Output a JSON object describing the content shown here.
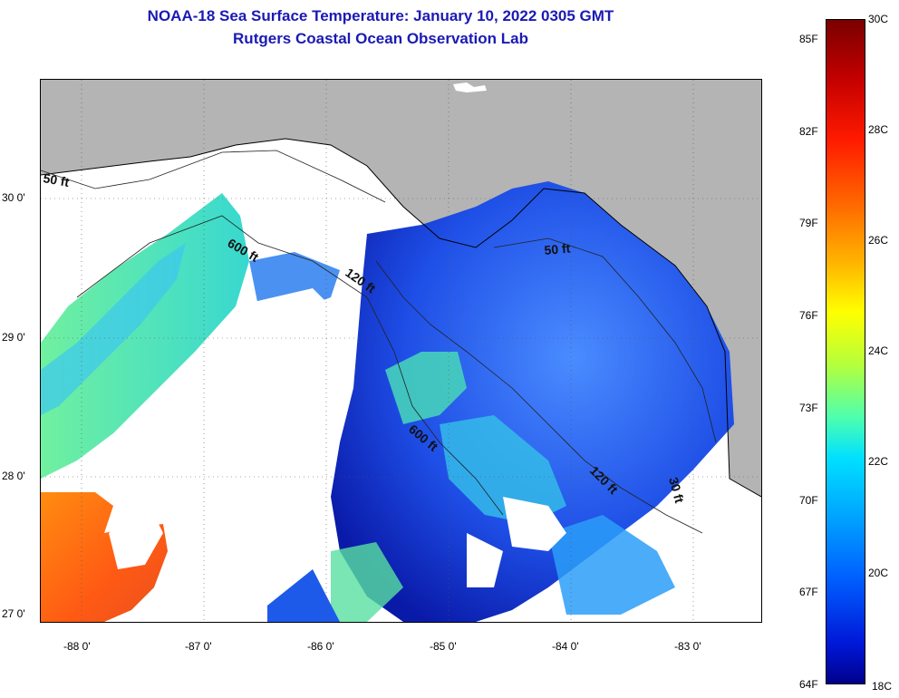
{
  "title": {
    "line1": "NOAA-18 Sea Surface Temperature:  January 10, 2022 0305 GMT",
    "line2": "Rutgers Coastal Ocean Observation Lab"
  },
  "map": {
    "lat_labels": [
      "30 0'",
      "29 0'",
      "28 0'",
      "27 0'"
    ],
    "lon_labels": [
      "-88 0'",
      "-87 0'",
      "-86 0'",
      "-85 0'",
      "-84 0'",
      "-83 0'"
    ],
    "contour_labels": [
      "50 ft",
      "600 ft",
      "120 ft",
      "50 ft",
      "600 ft",
      "120 ft",
      "30 ft"
    ],
    "colors": {
      "land": "#b4b4b4",
      "cloud": "#ffffff",
      "coastline": "#000000"
    }
  },
  "colorbar": {
    "celsius": [
      "30C",
      "28C",
      "26C",
      "24C",
      "22C",
      "20C",
      "18C"
    ],
    "fahrenheit": [
      "85F",
      "82F",
      "79F",
      "76F",
      "73F",
      "70F",
      "67F",
      "64F"
    ],
    "min_c": 18,
    "max_c": 30
  }
}
